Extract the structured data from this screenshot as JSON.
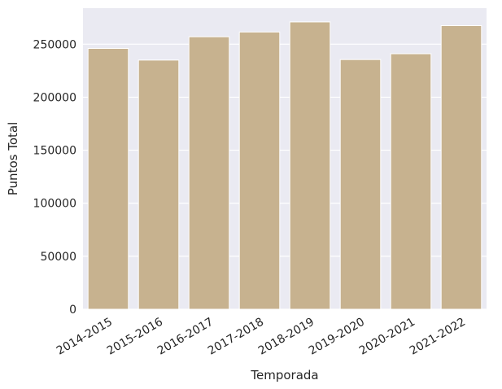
{
  "chart_data": {
    "type": "bar",
    "title": "",
    "xlabel": "Temporada",
    "ylabel": "Puntos Total",
    "categories": [
      "2014-2015",
      "2015-2016",
      "2016-2017",
      "2017-2018",
      "2018-2019",
      "2019-2020",
      "2020-2021",
      "2021-2022"
    ],
    "values": [
      246000,
      235000,
      257000,
      261500,
      271000,
      235500,
      241000,
      267500
    ],
    "ylim": [
      0,
      284000
    ],
    "yticks": [
      0,
      50000,
      100000,
      150000,
      200000,
      250000
    ],
    "ytick_labels": [
      "0",
      "50000",
      "100000",
      "150000",
      "200000",
      "250000"
    ],
    "grid": true,
    "x_tick_rotation": "30 degrees",
    "colors": {
      "bar": "#c7b28f",
      "plot_background": "#eaeaf2",
      "grid": "#ffffff"
    }
  }
}
